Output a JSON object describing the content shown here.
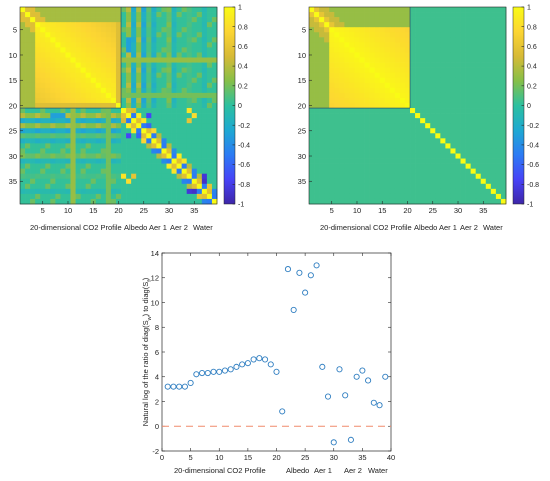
{
  "colors": {
    "colormap": [
      "#3e26a8",
      "#4743f7",
      "#2c7bf4",
      "#1ea9d2",
      "#2cc0a0",
      "#86bf48",
      "#d7ba37",
      "#fcd533",
      "#f9fb15"
    ],
    "marker": "#2f7ec1",
    "zero_line": "#f08a6b",
    "axis": "#262626"
  },
  "chart_data": [
    {
      "type": "heatmap",
      "description_scale": "correlation",
      "size": 39,
      "clim": [
        -1,
        1
      ],
      "colorbar_ticks": [
        "1",
        "0.8",
        "0.6",
        "0.4",
        "0.2",
        "0",
        "-0.2",
        "-0.4",
        "-0.6",
        "-0.8",
        "-1"
      ],
      "y_ticks": [
        "5",
        "10",
        "15",
        "20",
        "25",
        "30",
        "35"
      ],
      "x_ticks": [
        "5",
        "10",
        "15",
        "20",
        "25",
        "30",
        "35"
      ],
      "group_labels": [
        "20-dimensional CO2 Profile",
        "Albedo",
        "Aer 1",
        "Aer 2",
        "Water"
      ]
    },
    {
      "type": "heatmap",
      "size": 39,
      "clim": [
        -1,
        1
      ],
      "colorbar_ticks": [
        "1",
        "0.8",
        "0.6",
        "0.4",
        "0.2",
        "0",
        "-0.2",
        "-0.4",
        "-0.6",
        "-0.8",
        "-1"
      ],
      "y_ticks": [
        "5",
        "10",
        "15",
        "20",
        "25",
        "30",
        "35"
      ],
      "x_ticks": [
        "5",
        "10",
        "15",
        "20",
        "25",
        "30",
        "35"
      ],
      "group_labels": [
        "20-dimensional CO2 Profile",
        "Albedo",
        "Aer 1",
        "Aer 2",
        "Water"
      ]
    },
    {
      "type": "scatter",
      "ylabel": "Natural log of the ratio of diag(S",
      "ylabel_sub1": "w",
      "ylabel_mid": ") to diag(S",
      "ylabel_sub2": "f",
      "ylabel_end": ")",
      "xlim": [
        0,
        40
      ],
      "ylim": [
        -2,
        14
      ],
      "x_ticks": [
        "0",
        "5",
        "10",
        "15",
        "20",
        "25",
        "30",
        "35",
        "40"
      ],
      "y_ticks": [
        "-2",
        "0",
        "2",
        "4",
        "6",
        "8",
        "10",
        "12",
        "14"
      ],
      "x_group_labels": [
        "20-dimensional CO2 Profile",
        "Albedo",
        "Aer 1",
        "Aer 2",
        "Water"
      ],
      "reference_line_y": 0,
      "points": [
        [
          1,
          3.2
        ],
        [
          2,
          3.2
        ],
        [
          3,
          3.2
        ],
        [
          4,
          3.2
        ],
        [
          5,
          3.5
        ],
        [
          6,
          4.2
        ],
        [
          7,
          4.3
        ],
        [
          8,
          4.3
        ],
        [
          9,
          4.4
        ],
        [
          10,
          4.4
        ],
        [
          11,
          4.5
        ],
        [
          12,
          4.6
        ],
        [
          13,
          4.8
        ],
        [
          14,
          5.0
        ],
        [
          15,
          5.1
        ],
        [
          16,
          5.4
        ],
        [
          17,
          5.5
        ],
        [
          18,
          5.4
        ],
        [
          19,
          5.0
        ],
        [
          20,
          4.4
        ],
        [
          21,
          1.2
        ],
        [
          22,
          12.7
        ],
        [
          23,
          9.4
        ],
        [
          24,
          12.4
        ],
        [
          25,
          10.8
        ],
        [
          26,
          12.2
        ],
        [
          27,
          13.0
        ],
        [
          28,
          4.8
        ],
        [
          29,
          2.4
        ],
        [
          30,
          -1.3
        ],
        [
          31,
          4.6
        ],
        [
          32,
          2.5
        ],
        [
          33,
          -1.1
        ],
        [
          34,
          4.0
        ],
        [
          35,
          4.5
        ],
        [
          36,
          3.7
        ],
        [
          37,
          1.9
        ],
        [
          38,
          1.7
        ],
        [
          39,
          4.0
        ]
      ]
    }
  ]
}
